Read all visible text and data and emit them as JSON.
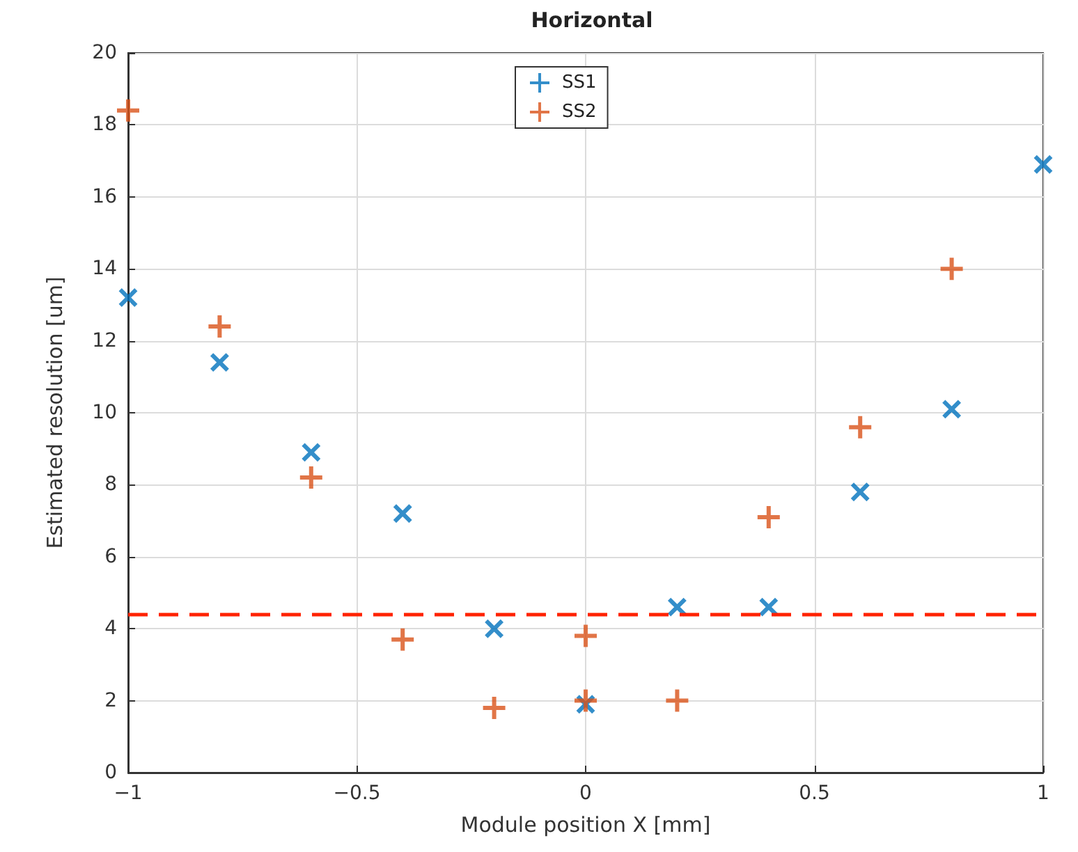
{
  "chart_data": {
    "type": "scatter",
    "title": "Horizontal",
    "xlabel": "Module position X [mm]",
    "ylabel": "Estimated resolution [um]",
    "xlim": [
      -1,
      1
    ],
    "xticks": [
      -1,
      -0.5,
      0,
      0.5,
      1
    ],
    "ylim": [
      0,
      20
    ],
    "yticks": [
      0,
      2,
      4,
      6,
      8,
      10,
      12,
      14,
      16,
      18,
      20
    ],
    "grid": true,
    "legend": "top",
    "marker": "cross",
    "series": [
      {
        "name": "SS1",
        "color": "#0072bd",
        "x": [
          -1,
          -0.8,
          -0.6,
          -0.4,
          -0.2,
          0,
          0.2,
          0.4,
          0.6,
          0.8,
          1
        ],
        "values": [
          13.2,
          11.4,
          8.9,
          7.2,
          4.0,
          1.9,
          4.6,
          4.6,
          7.8,
          10.1,
          16.9
        ]
      },
      {
        "name": "SS2",
        "color": "#d95319",
        "x": [
          -1,
          -0.8,
          -0.6,
          -0.4,
          -0.2,
          0,
          0,
          0.2,
          0.4,
          0.6,
          0.8
        ],
        "values": [
          18.4,
          12.4,
          8.2,
          3.7,
          1.8,
          3.8,
          2.0,
          2.0,
          7.1,
          9.6,
          14.0
        ]
      }
    ],
    "ref_lines": [
      {
        "axis": "y",
        "value": 4.4,
        "color": "#ff2200",
        "line_style": "dashed"
      }
    ]
  }
}
